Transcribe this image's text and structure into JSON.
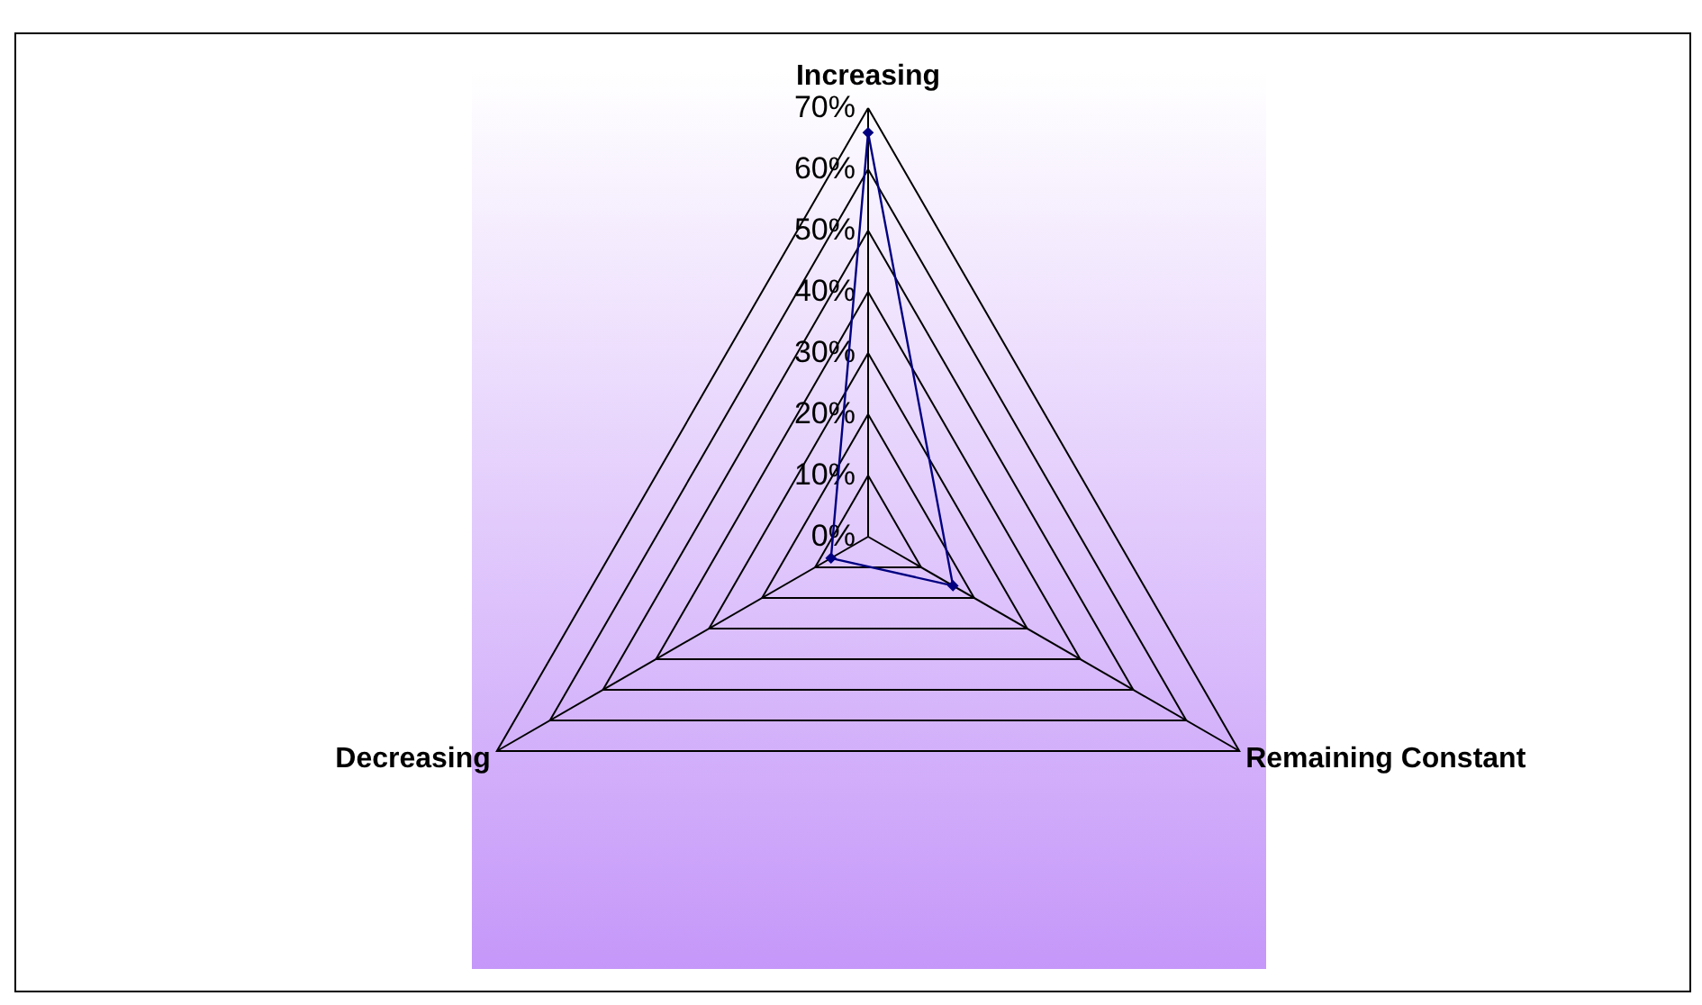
{
  "chart_data": {
    "type": "radar",
    "categories": [
      "Increasing",
      "Remaining Constant",
      "Decreasing"
    ],
    "series": [
      {
        "color": "#000080",
        "values": [
          66,
          16,
          7
        ]
      }
    ],
    "ylim": [
      0,
      70
    ],
    "yticks": [
      {
        "value": 0,
        "label": "0%"
      },
      {
        "value": 10,
        "label": "10%"
      },
      {
        "value": 20,
        "label": "20%"
      },
      {
        "value": 30,
        "label": "30%"
      },
      {
        "value": 40,
        "label": "40%"
      },
      {
        "value": 50,
        "label": "50%"
      },
      {
        "value": 60,
        "label": "60%"
      },
      {
        "value": 70,
        "label": "70%"
      }
    ],
    "grid": true,
    "marker": "diamond"
  }
}
